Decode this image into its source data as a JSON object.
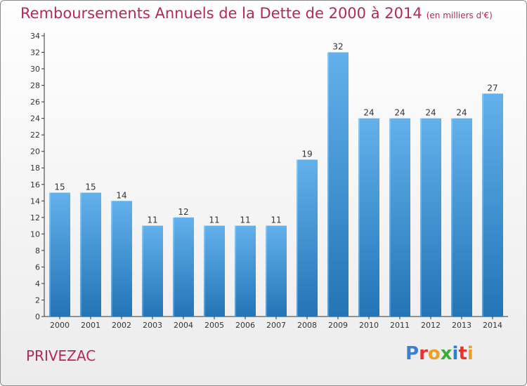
{
  "header": {
    "title": "Remboursements Annuels de la Dette de 2000 à 2014",
    "unit": "(en milliers d'€)"
  },
  "footer": {
    "commune": "PRIVEZAC",
    "logo_text": "Proxiti"
  },
  "colors": {
    "title": "#b52955",
    "bar_top": "#62b1ec",
    "bar_bottom": "#2474b6",
    "axis": "#333333"
  },
  "chart_data": {
    "type": "bar",
    "title": "Remboursements Annuels de la Dette de 2000 à 2014",
    "subtitle": "(en milliers d'€)",
    "xlabel": "",
    "ylabel": "",
    "categories": [
      "2000",
      "2001",
      "2002",
      "2003",
      "2004",
      "2005",
      "2006",
      "2007",
      "2008",
      "2009",
      "2010",
      "2011",
      "2012",
      "2013",
      "2014"
    ],
    "values": [
      15,
      15,
      14,
      11,
      12,
      11,
      11,
      11,
      19,
      32,
      24,
      24,
      24,
      24,
      27
    ],
    "data_labels": [
      "15",
      "15",
      "14",
      "11",
      "12",
      "11",
      "11",
      "11",
      "19",
      "32",
      "24",
      "24",
      "24",
      "24",
      "27"
    ],
    "ylim": [
      0,
      34
    ],
    "yticks": [
      0,
      2,
      4,
      6,
      8,
      10,
      12,
      14,
      16,
      18,
      20,
      22,
      24,
      26,
      28,
      30,
      32,
      34
    ],
    "grid": false,
    "legend": "none"
  }
}
